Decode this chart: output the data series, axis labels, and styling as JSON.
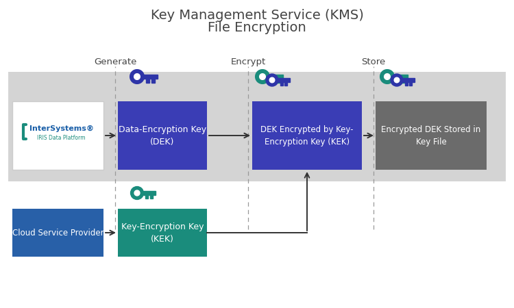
{
  "title_line1": "Key Management Service (KMS)",
  "title_line2": "File Encryption",
  "title_fontsize": 14,
  "bg_color": "#ffffff",
  "band_color": "#d4d4d4",
  "box_dek_color": "#3a3db5",
  "box_kek_color": "#1a8c7c",
  "box_encrypted_color": "#6b6b6b",
  "box_intersystems_color": "#ffffff",
  "box_cloud_color": "#2860a8",
  "text_color_white": "#ffffff",
  "text_color_dark": "#444444",
  "dashed_line_color": "#999999",
  "arrow_color": "#333333",
  "key_blue_color": "#2e35a8",
  "key_teal_color": "#1a8c7c",
  "label_generate": "Generate",
  "label_encrypt": "Encrypt",
  "label_store": "Store",
  "intersystems_text1": "InterSystems",
  "intersystems_text2": "IRIS Data Platform",
  "box_dek_text": "Data-Encryption Key\n(DEK)",
  "box_kek_text": "Key-Encryption Key\n(KEK)",
  "box_encrypted_text": "DEK Encrypted by Key-\nEncryption Key (KEK)",
  "box_stored_text": "Encrypted DEK Stored in\nKey File",
  "cloud_text": "Cloud Service Provider",
  "intersystems_blue": "#1a5fa8",
  "intersystems_teal": "#1a8c7c"
}
